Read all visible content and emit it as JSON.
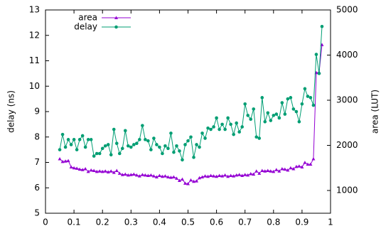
{
  "chart_data": {
    "type": "line",
    "x": [
      0.05,
      0.06,
      0.07,
      0.08,
      0.09,
      0.1,
      0.11,
      0.12,
      0.13,
      0.14,
      0.15,
      0.16,
      0.17,
      0.18,
      0.19,
      0.2,
      0.21,
      0.22,
      0.23,
      0.24,
      0.25,
      0.26,
      0.27,
      0.28,
      0.29,
      0.3,
      0.31,
      0.32,
      0.33,
      0.34,
      0.35,
      0.36,
      0.37,
      0.38,
      0.39,
      0.4,
      0.41,
      0.42,
      0.43,
      0.44,
      0.45,
      0.46,
      0.47,
      0.48,
      0.49,
      0.5,
      0.51,
      0.52,
      0.53,
      0.54,
      0.55,
      0.56,
      0.57,
      0.58,
      0.59,
      0.6,
      0.61,
      0.62,
      0.63,
      0.64,
      0.65,
      0.66,
      0.67,
      0.68,
      0.69,
      0.7,
      0.71,
      0.72,
      0.73,
      0.74,
      0.75,
      0.76,
      0.77,
      0.78,
      0.79,
      0.8,
      0.81,
      0.82,
      0.83,
      0.84,
      0.85,
      0.86,
      0.87,
      0.88,
      0.89,
      0.9,
      0.91,
      0.92,
      0.93,
      0.94,
      0.95,
      0.96,
      0.97
    ],
    "series": [
      {
        "name": "area",
        "color": "#9400d3",
        "axis": "y2",
        "marker": "triangle",
        "values": [
          1700,
          1640,
          1650,
          1660,
          1520,
          1500,
          1490,
          1470,
          1460,
          1480,
          1420,
          1450,
          1440,
          1420,
          1430,
          1420,
          1430,
          1410,
          1430,
          1400,
          1440,
          1380,
          1350,
          1360,
          1340,
          1350,
          1360,
          1340,
          1320,
          1350,
          1340,
          1330,
          1340,
          1320,
          1300,
          1330,
          1310,
          1320,
          1300,
          1290,
          1300,
          1270,
          1220,
          1250,
          1160,
          1150,
          1230,
          1200,
          1210,
          1280,
          1300,
          1320,
          1310,
          1330,
          1320,
          1310,
          1330,
          1320,
          1340,
          1310,
          1330,
          1320,
          1340,
          1350,
          1330,
          1350,
          1340,
          1370,
          1360,
          1430,
          1380,
          1440,
          1430,
          1440,
          1430,
          1420,
          1460,
          1430,
          1480,
          1470,
          1450,
          1500,
          1480,
          1530,
          1540,
          1520,
          1620,
          1580,
          1580,
          1700,
          3610,
          3620,
          4230
        ]
      },
      {
        "name": "delay",
        "color": "#009e73",
        "marker": "circle",
        "values": [
          7.5,
          8.1,
          7.6,
          7.9,
          7.7,
          7.9,
          7.5,
          7.9,
          8.05,
          7.6,
          7.9,
          7.9,
          7.25,
          7.35,
          7.35,
          7.55,
          7.65,
          7.7,
          7.3,
          8.3,
          7.75,
          7.35,
          7.55,
          8.25,
          7.65,
          7.6,
          7.7,
          7.75,
          7.9,
          8.45,
          7.9,
          7.85,
          7.5,
          7.95,
          7.7,
          7.6,
          7.35,
          7.65,
          7.55,
          8.15,
          7.4,
          7.65,
          7.45,
          7.1,
          7.7,
          7.85,
          8.0,
          7.2,
          7.7,
          7.6,
          8.15,
          7.95,
          8.35,
          8.3,
          8.4,
          8.75,
          8.3,
          8.5,
          8.3,
          8.75,
          8.5,
          8.1,
          8.55,
          8.2,
          8.4,
          9.3,
          8.85,
          8.7,
          9.1,
          8.0,
          7.95,
          9.55,
          8.6,
          8.95,
          8.65,
          8.85,
          8.9,
          8.75,
          9.35,
          8.9,
          9.5,
          9.55,
          9.1,
          9.0,
          8.6,
          9.3,
          9.9,
          9.6,
          9.55,
          9.25,
          11.25,
          10.5,
          12.35
        ]
      }
    ],
    "xlim": [
      0,
      1
    ],
    "xticks": [
      0,
      0.1,
      0.2,
      0.3,
      0.4,
      0.5,
      0.6,
      0.7,
      0.8,
      0.9,
      1
    ],
    "ylim": [
      5,
      13
    ],
    "yticks": [
      5,
      6,
      7,
      8,
      9,
      10,
      11,
      12,
      13
    ],
    "y2lim": [
      496,
      5000
    ],
    "y2ticks": [
      1000,
      2000,
      3000,
      4000,
      5000
    ],
    "ylabel": "delay (ns)",
    "y2label": "area (LUT)",
    "legend": "top-left"
  }
}
